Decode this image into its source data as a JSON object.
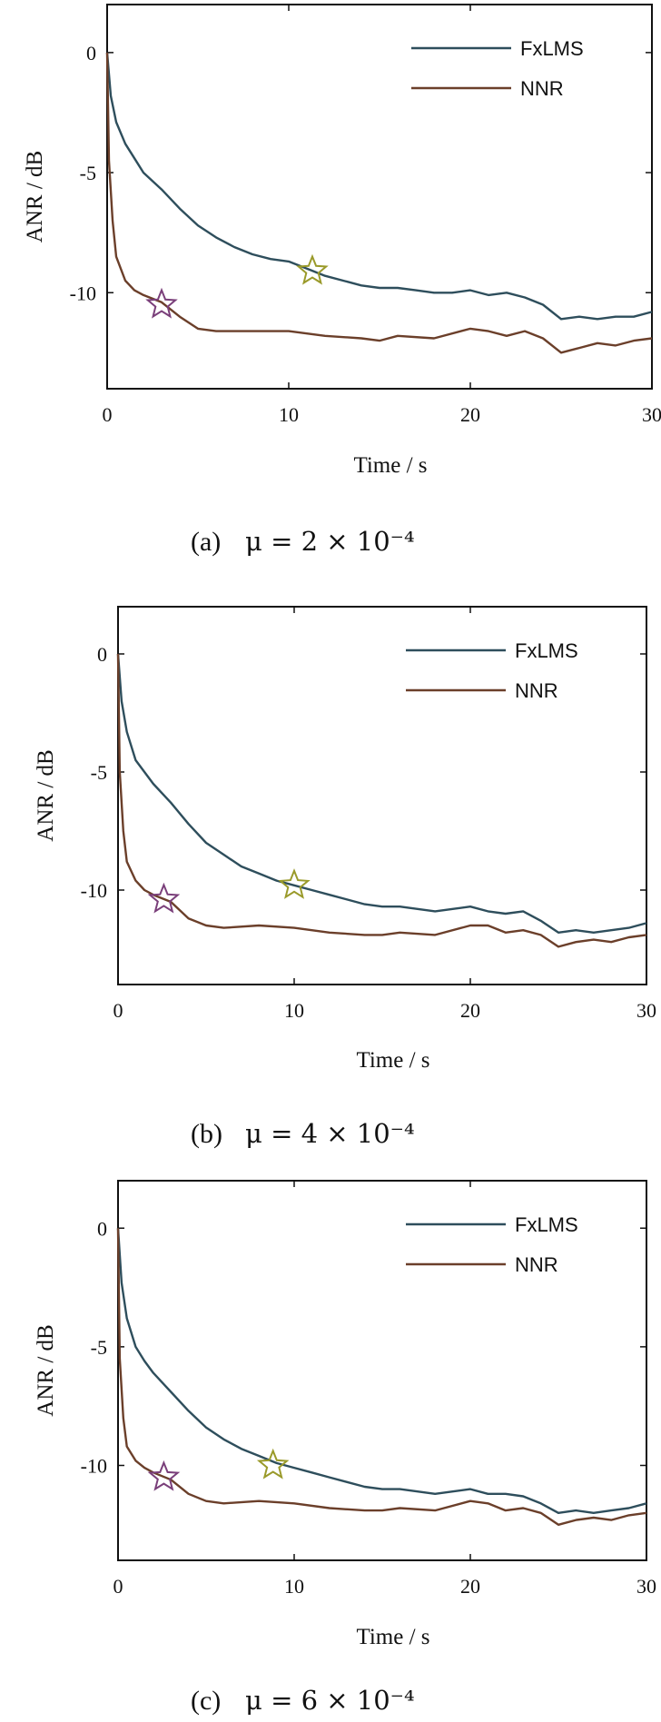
{
  "colors": {
    "FxLMS": "#2e4e5c",
    "NNR": "#6b3f2a",
    "star_purple": "#7a3f7a",
    "star_yellow": "#9a9a2a"
  },
  "chart_data": [
    {
      "type": "line",
      "caption_label": "(a)",
      "caption_math": "μ = 2 × 10⁻⁴",
      "xlabel": "Time / s",
      "ylabel": "ANR / dB",
      "xlim": [
        0,
        30
      ],
      "ylim": [
        -14,
        2
      ],
      "xticks": [
        "0",
        "10",
        "20",
        "30"
      ],
      "yticks": [
        "0",
        "-5",
        "-10"
      ],
      "legend_position": "top-right",
      "series": [
        {
          "name": "FxLMS",
          "x": [
            0,
            0.2,
            0.5,
            1,
            1.5,
            2,
            3,
            4,
            5,
            6,
            7,
            8,
            9,
            10,
            11,
            12,
            13,
            14,
            15,
            16,
            17,
            18,
            19,
            20,
            21,
            22,
            23,
            24,
            25,
            26,
            27,
            28,
            29,
            30
          ],
          "y": [
            0,
            -1.8,
            -2.9,
            -3.8,
            -4.4,
            -5.0,
            -5.7,
            -6.5,
            -7.2,
            -7.7,
            -8.1,
            -8.4,
            -8.6,
            -8.7,
            -9.0,
            -9.3,
            -9.5,
            -9.7,
            -9.8,
            -9.8,
            -9.9,
            -10.0,
            -10.0,
            -9.9,
            -10.1,
            -10.0,
            -10.2,
            -10.5,
            -11.1,
            -11.0,
            -11.1,
            -11.0,
            -11.0,
            -10.8
          ]
        },
        {
          "name": "NNR",
          "x": [
            0,
            0.1,
            0.3,
            0.5,
            1,
            1.5,
            2,
            3,
            4,
            5,
            6,
            8,
            10,
            12,
            14,
            15,
            16,
            18,
            20,
            21,
            22,
            23,
            24,
            25,
            26,
            27,
            28,
            29,
            30
          ],
          "y": [
            0,
            -4.5,
            -7.0,
            -8.5,
            -9.5,
            -9.9,
            -10.1,
            -10.4,
            -11.0,
            -11.5,
            -11.6,
            -11.6,
            -11.6,
            -11.8,
            -11.9,
            -12.0,
            -11.8,
            -11.9,
            -11.5,
            -11.6,
            -11.8,
            -11.6,
            -11.9,
            -12.5,
            -12.3,
            -12.1,
            -12.2,
            -12.0,
            -11.9
          ]
        }
      ],
      "markers": [
        {
          "x": 3.0,
          "y": -10.5,
          "color": "purple"
        },
        {
          "x": 11.3,
          "y": -9.1,
          "color": "yellow"
        }
      ]
    },
    {
      "type": "line",
      "caption_label": "(b)",
      "caption_math": "μ = 4 × 10⁻⁴",
      "xlabel": "Time / s",
      "ylabel": "ANR / dB",
      "xlim": [
        0,
        30
      ],
      "ylim": [
        -14,
        2
      ],
      "xticks": [
        "0",
        "10",
        "20",
        "30"
      ],
      "yticks": [
        "0",
        "-5",
        "-10"
      ],
      "legend_position": "top-right",
      "series": [
        {
          "name": "FxLMS",
          "x": [
            0,
            0.2,
            0.5,
            1,
            1.5,
            2,
            3,
            4,
            5,
            6,
            7,
            8,
            9,
            10,
            11,
            12,
            13,
            14,
            15,
            16,
            17,
            18,
            19,
            20,
            21,
            22,
            23,
            24,
            25,
            26,
            27,
            28,
            29,
            30
          ],
          "y": [
            0,
            -2.0,
            -3.3,
            -4.5,
            -5.0,
            -5.5,
            -6.3,
            -7.2,
            -8.0,
            -8.5,
            -9.0,
            -9.3,
            -9.6,
            -9.8,
            -10.0,
            -10.2,
            -10.4,
            -10.6,
            -10.7,
            -10.7,
            -10.8,
            -10.9,
            -10.8,
            -10.7,
            -10.9,
            -11.0,
            -10.9,
            -11.3,
            -11.8,
            -11.7,
            -11.8,
            -11.7,
            -11.6,
            -11.4
          ]
        },
        {
          "name": "NNR",
          "x": [
            0,
            0.1,
            0.3,
            0.5,
            1,
            1.5,
            2,
            3,
            4,
            5,
            6,
            8,
            10,
            12,
            14,
            15,
            16,
            18,
            20,
            21,
            22,
            23,
            24,
            25,
            26,
            27,
            28,
            29,
            30
          ],
          "y": [
            0,
            -5.0,
            -7.5,
            -8.8,
            -9.6,
            -10.0,
            -10.2,
            -10.5,
            -11.2,
            -11.5,
            -11.6,
            -11.5,
            -11.6,
            -11.8,
            -11.9,
            -11.9,
            -11.8,
            -11.9,
            -11.5,
            -11.5,
            -11.8,
            -11.7,
            -11.9,
            -12.4,
            -12.2,
            -12.1,
            -12.2,
            -12.0,
            -11.9
          ]
        }
      ],
      "markers": [
        {
          "x": 2.6,
          "y": -10.4,
          "color": "purple"
        },
        {
          "x": 10.0,
          "y": -9.8,
          "color": "yellow"
        }
      ]
    },
    {
      "type": "line",
      "caption_label": "(c)",
      "caption_math": "μ = 6 × 10⁻⁴",
      "xlabel": "Time / s",
      "ylabel": "ANR / dB",
      "xlim": [
        0,
        30
      ],
      "ylim": [
        -14,
        2
      ],
      "xticks": [
        "0",
        "10",
        "20",
        "30"
      ],
      "yticks": [
        "0",
        "-5",
        "-10"
      ],
      "legend_position": "top-right",
      "series": [
        {
          "name": "FxLMS",
          "x": [
            0,
            0.2,
            0.5,
            1,
            1.5,
            2,
            3,
            4,
            5,
            6,
            7,
            8,
            9,
            10,
            11,
            12,
            13,
            14,
            15,
            16,
            17,
            18,
            19,
            20,
            21,
            22,
            23,
            24,
            25,
            26,
            27,
            28,
            29,
            30
          ],
          "y": [
            0,
            -2.3,
            -3.8,
            -5.0,
            -5.6,
            -6.1,
            -6.9,
            -7.7,
            -8.4,
            -8.9,
            -9.3,
            -9.6,
            -9.9,
            -10.1,
            -10.3,
            -10.5,
            -10.7,
            -10.9,
            -11.0,
            -11.0,
            -11.1,
            -11.2,
            -11.1,
            -11.0,
            -11.2,
            -11.2,
            -11.3,
            -11.6,
            -12.0,
            -11.9,
            -12.0,
            -11.9,
            -11.8,
            -11.6
          ]
        },
        {
          "name": "NNR",
          "x": [
            0,
            0.1,
            0.3,
            0.5,
            1,
            1.5,
            2,
            3,
            4,
            5,
            6,
            8,
            10,
            12,
            14,
            15,
            16,
            18,
            20,
            21,
            22,
            23,
            24,
            25,
            26,
            27,
            28,
            29,
            30
          ],
          "y": [
            0,
            -5.5,
            -8.0,
            -9.2,
            -9.8,
            -10.1,
            -10.3,
            -10.6,
            -11.2,
            -11.5,
            -11.6,
            -11.5,
            -11.6,
            -11.8,
            -11.9,
            -11.9,
            -11.8,
            -11.9,
            -11.5,
            -11.6,
            -11.9,
            -11.8,
            -12.0,
            -12.5,
            -12.3,
            -12.2,
            -12.3,
            -12.1,
            -12.0
          ]
        }
      ],
      "markers": [
        {
          "x": 2.6,
          "y": -10.5,
          "color": "purple"
        },
        {
          "x": 8.8,
          "y": -10.0,
          "color": "yellow"
        }
      ]
    }
  ]
}
